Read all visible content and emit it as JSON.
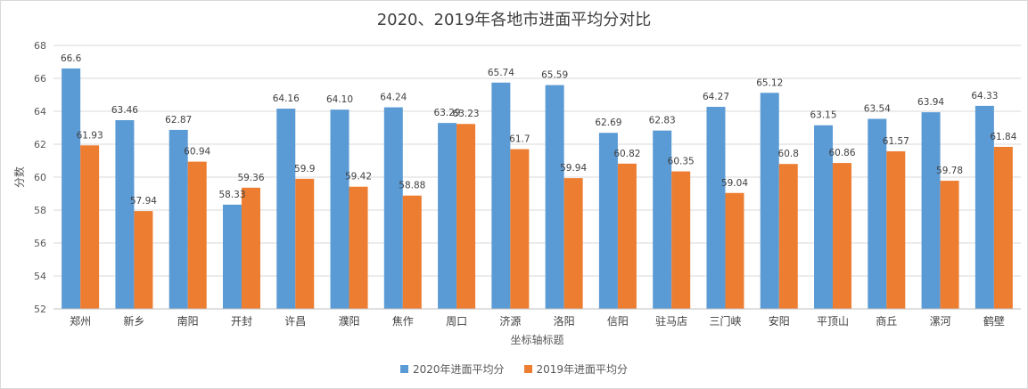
{
  "chart_data": {
    "type": "bar",
    "title": "2020、2019年各地市进面平均分对比",
    "xlabel": "坐标轴标题",
    "ylabel": "分数",
    "ylim": [
      52,
      68
    ],
    "yticks": [
      52,
      54,
      56,
      58,
      60,
      62,
      64,
      66,
      68
    ],
    "grid": true,
    "legend_position": "bottom",
    "categories": [
      "郑州",
      "新乡",
      "南阳",
      "开封",
      "许昌",
      "濮阳",
      "焦作",
      "周口",
      "济源",
      "洛阳",
      "信阳",
      "驻马店",
      "三门峡",
      "安阳",
      "平顶山",
      "商丘",
      "漯河",
      "鹤壁"
    ],
    "series": [
      {
        "name": "2020年进面平均分",
        "color": "#5b9bd5",
        "values": [
          66.6,
          63.46,
          62.87,
          58.33,
          64.16,
          64.1,
          64.24,
          63.29,
          65.74,
          65.59,
          62.69,
          62.83,
          64.27,
          65.12,
          63.15,
          63.54,
          63.94,
          64.33
        ],
        "labels": [
          "66.6",
          "63.46",
          "62.87",
          "58.33",
          "64.16",
          "64.10",
          "64.24",
          "63.29",
          "65.74",
          "65.59",
          "62.69",
          "62.83",
          "64.27",
          "65.12",
          "63.15",
          "63.54",
          "63.94",
          "64.33"
        ]
      },
      {
        "name": "2019年进面平均分",
        "color": "#ed7d31",
        "values": [
          61.93,
          57.94,
          60.94,
          59.36,
          59.9,
          59.42,
          58.88,
          63.23,
          61.7,
          59.94,
          60.82,
          60.35,
          59.04,
          60.8,
          60.86,
          61.57,
          59.78,
          61.84
        ],
        "labels": [
          "61.93",
          "57.94",
          "60.94",
          "59.36",
          "59.9",
          "59.42",
          "58.88",
          "63.23",
          "61.7",
          "59.94",
          "60.82",
          "60.35",
          "59.04",
          "60.8",
          "60.86",
          "61.57",
          "59.78",
          "61.84"
        ]
      }
    ]
  }
}
